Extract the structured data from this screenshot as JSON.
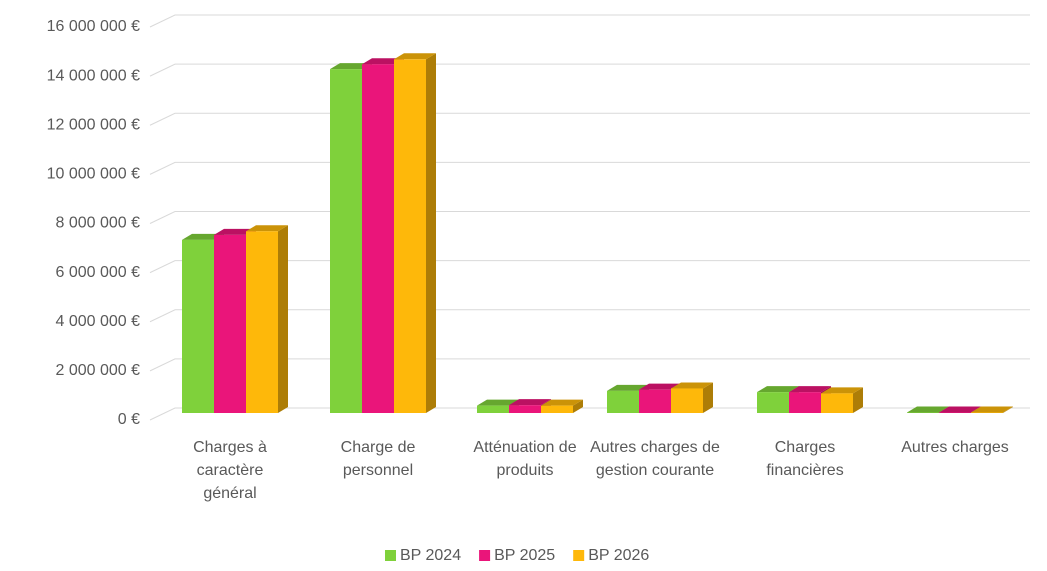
{
  "chart_data": {
    "type": "bar3d",
    "categories": [
      "Charges à caractère général",
      "Charge de personnel",
      "Atténuation de produits",
      "Autres charges de gestion courante",
      "Charges financières",
      "Autres charges"
    ],
    "series": [
      {
        "name": "BP 2024",
        "color": "#7fd13b",
        "values": [
          7050000,
          14000000,
          300000,
          900000,
          850000,
          20000
        ]
      },
      {
        "name": "BP 2025",
        "color": "#ea157a",
        "values": [
          7250000,
          14200000,
          320000,
          950000,
          850000,
          20000
        ]
      },
      {
        "name": "BP 2026",
        "color": "#feb80a",
        "values": [
          7400000,
          14400000,
          300000,
          1000000,
          800000,
          20000
        ]
      }
    ],
    "ylim": [
      0,
      16000000
    ],
    "yticks": [
      {
        "value": 0,
        "label": "0 €"
      },
      {
        "value": 2000000,
        "label": "2 000 000 €"
      },
      {
        "value": 4000000,
        "label": "4 000 000 €"
      },
      {
        "value": 6000000,
        "label": "6 000 000 €"
      },
      {
        "value": 8000000,
        "label": "8 000 000 €"
      },
      {
        "value": 10000000,
        "label": "10 000 000 €"
      },
      {
        "value": 12000000,
        "label": "12 000 000 €"
      },
      {
        "value": 14000000,
        "label": "14 000 000 €"
      },
      {
        "value": 16000000,
        "label": "16 000 000 €"
      }
    ],
    "grid": true,
    "legend": "bottom"
  }
}
